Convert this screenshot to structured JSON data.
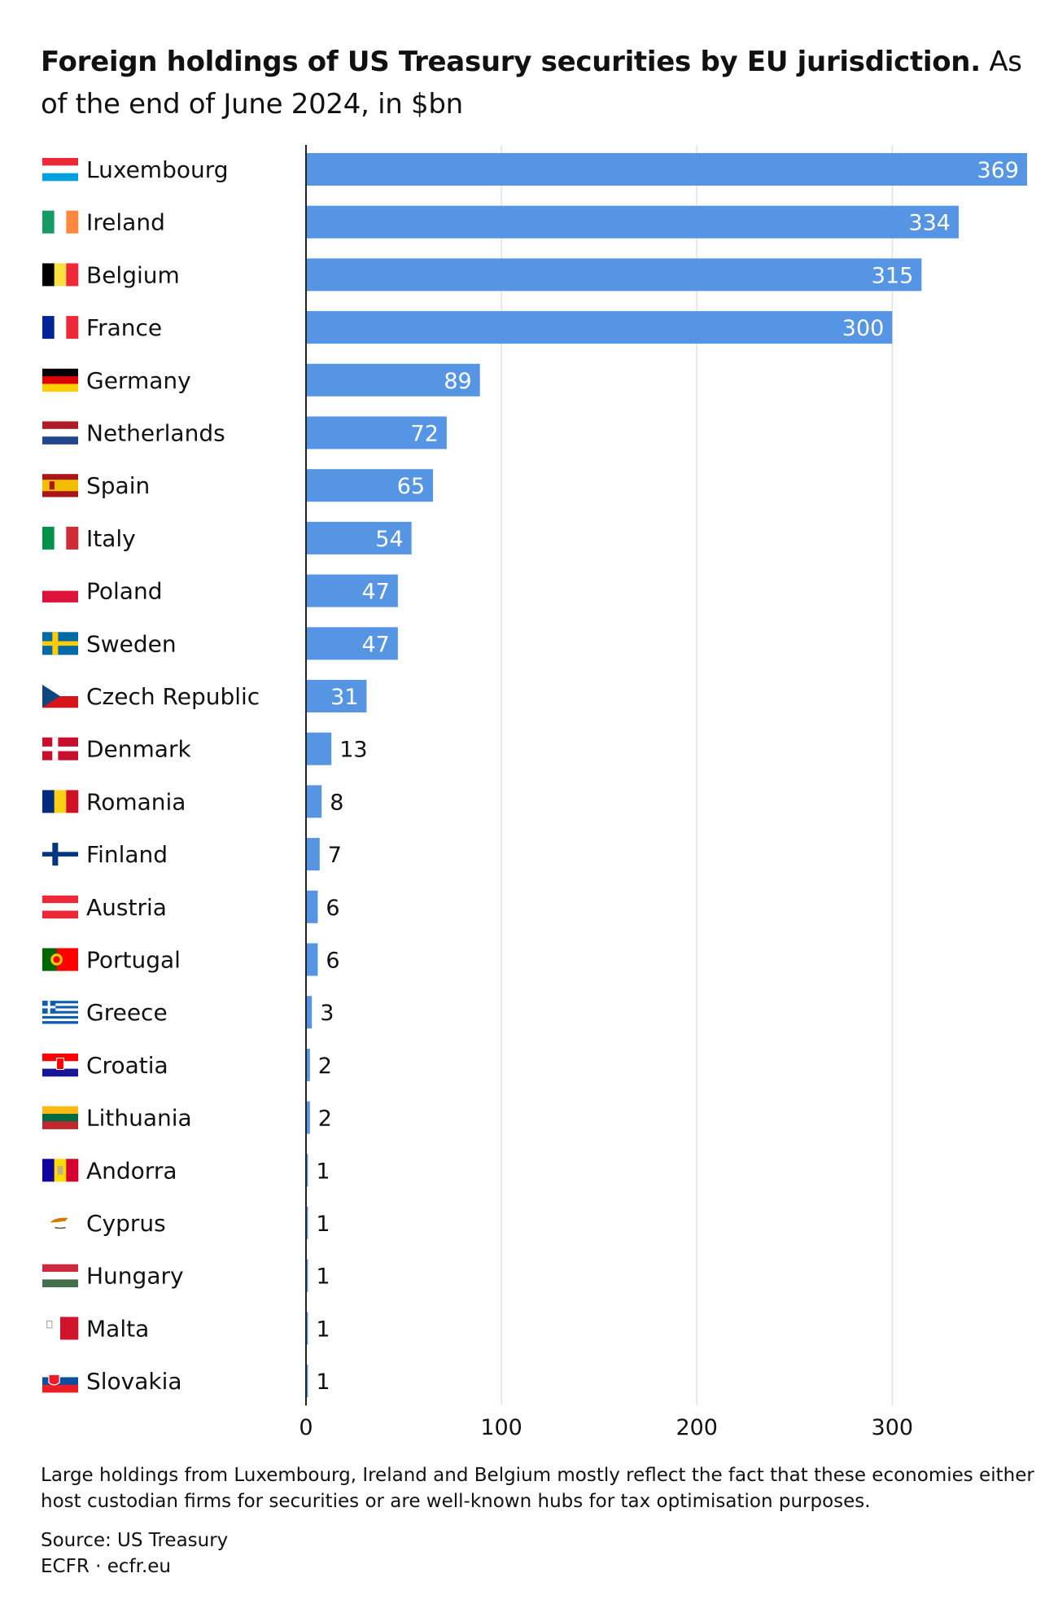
{
  "title": {
    "bold": "Foreign holdings of US Treasury securities by EU jurisdiction.",
    "rest": " As of the end of June 2024, in $bn"
  },
  "note": "Large holdings from Luxembourg, Ireland and Belgium mostly reflect the fact that these economies either host custodian firms for securities or are well-known hubs for tax optimisation purposes.",
  "source": "Source: US Treasury",
  "credit": "ECFR · ecfr.eu",
  "colors": {
    "bar": "#5595e3",
    "grid": "#e1e1e1",
    "axis": "#222222",
    "label_inside": "#ffffff",
    "label_outside": "#111111"
  },
  "chart_data": {
    "type": "bar",
    "orientation": "horizontal",
    "categories": [
      "Luxembourg",
      "Ireland",
      "Belgium",
      "France",
      "Germany",
      "Netherlands",
      "Spain",
      "Italy",
      "Poland",
      "Sweden",
      "Czech Republic",
      "Denmark",
      "Romania",
      "Finland",
      "Austria",
      "Portugal",
      "Greece",
      "Croatia",
      "Lithuania",
      "Andorra",
      "Cyprus",
      "Hungary",
      "Malta",
      "Slovakia"
    ],
    "values": [
      369,
      334,
      315,
      300,
      89,
      72,
      65,
      54,
      47,
      47,
      31,
      13,
      8,
      7,
      6,
      6,
      3,
      2,
      2,
      1,
      1,
      1,
      1,
      1
    ],
    "flags": [
      "luxembourg-flag-icon",
      "ireland-flag-icon",
      "belgium-flag-icon",
      "france-flag-icon",
      "germany-flag-icon",
      "netherlands-flag-icon",
      "spain-flag-icon",
      "italy-flag-icon",
      "poland-flag-icon",
      "sweden-flag-icon",
      "czech-republic-flag-icon",
      "denmark-flag-icon",
      "romania-flag-icon",
      "finland-flag-icon",
      "austria-flag-icon",
      "portugal-flag-icon",
      "greece-flag-icon",
      "croatia-flag-icon",
      "lithuania-flag-icon",
      "andorra-flag-icon",
      "cyprus-flag-icon",
      "hungary-flag-icon",
      "malta-flag-icon",
      "slovakia-flag-icon"
    ],
    "xticks": [
      0,
      100,
      200,
      300
    ],
    "xlim": [
      0,
      369
    ],
    "grid": true,
    "xlabel": "",
    "ylabel": ""
  }
}
